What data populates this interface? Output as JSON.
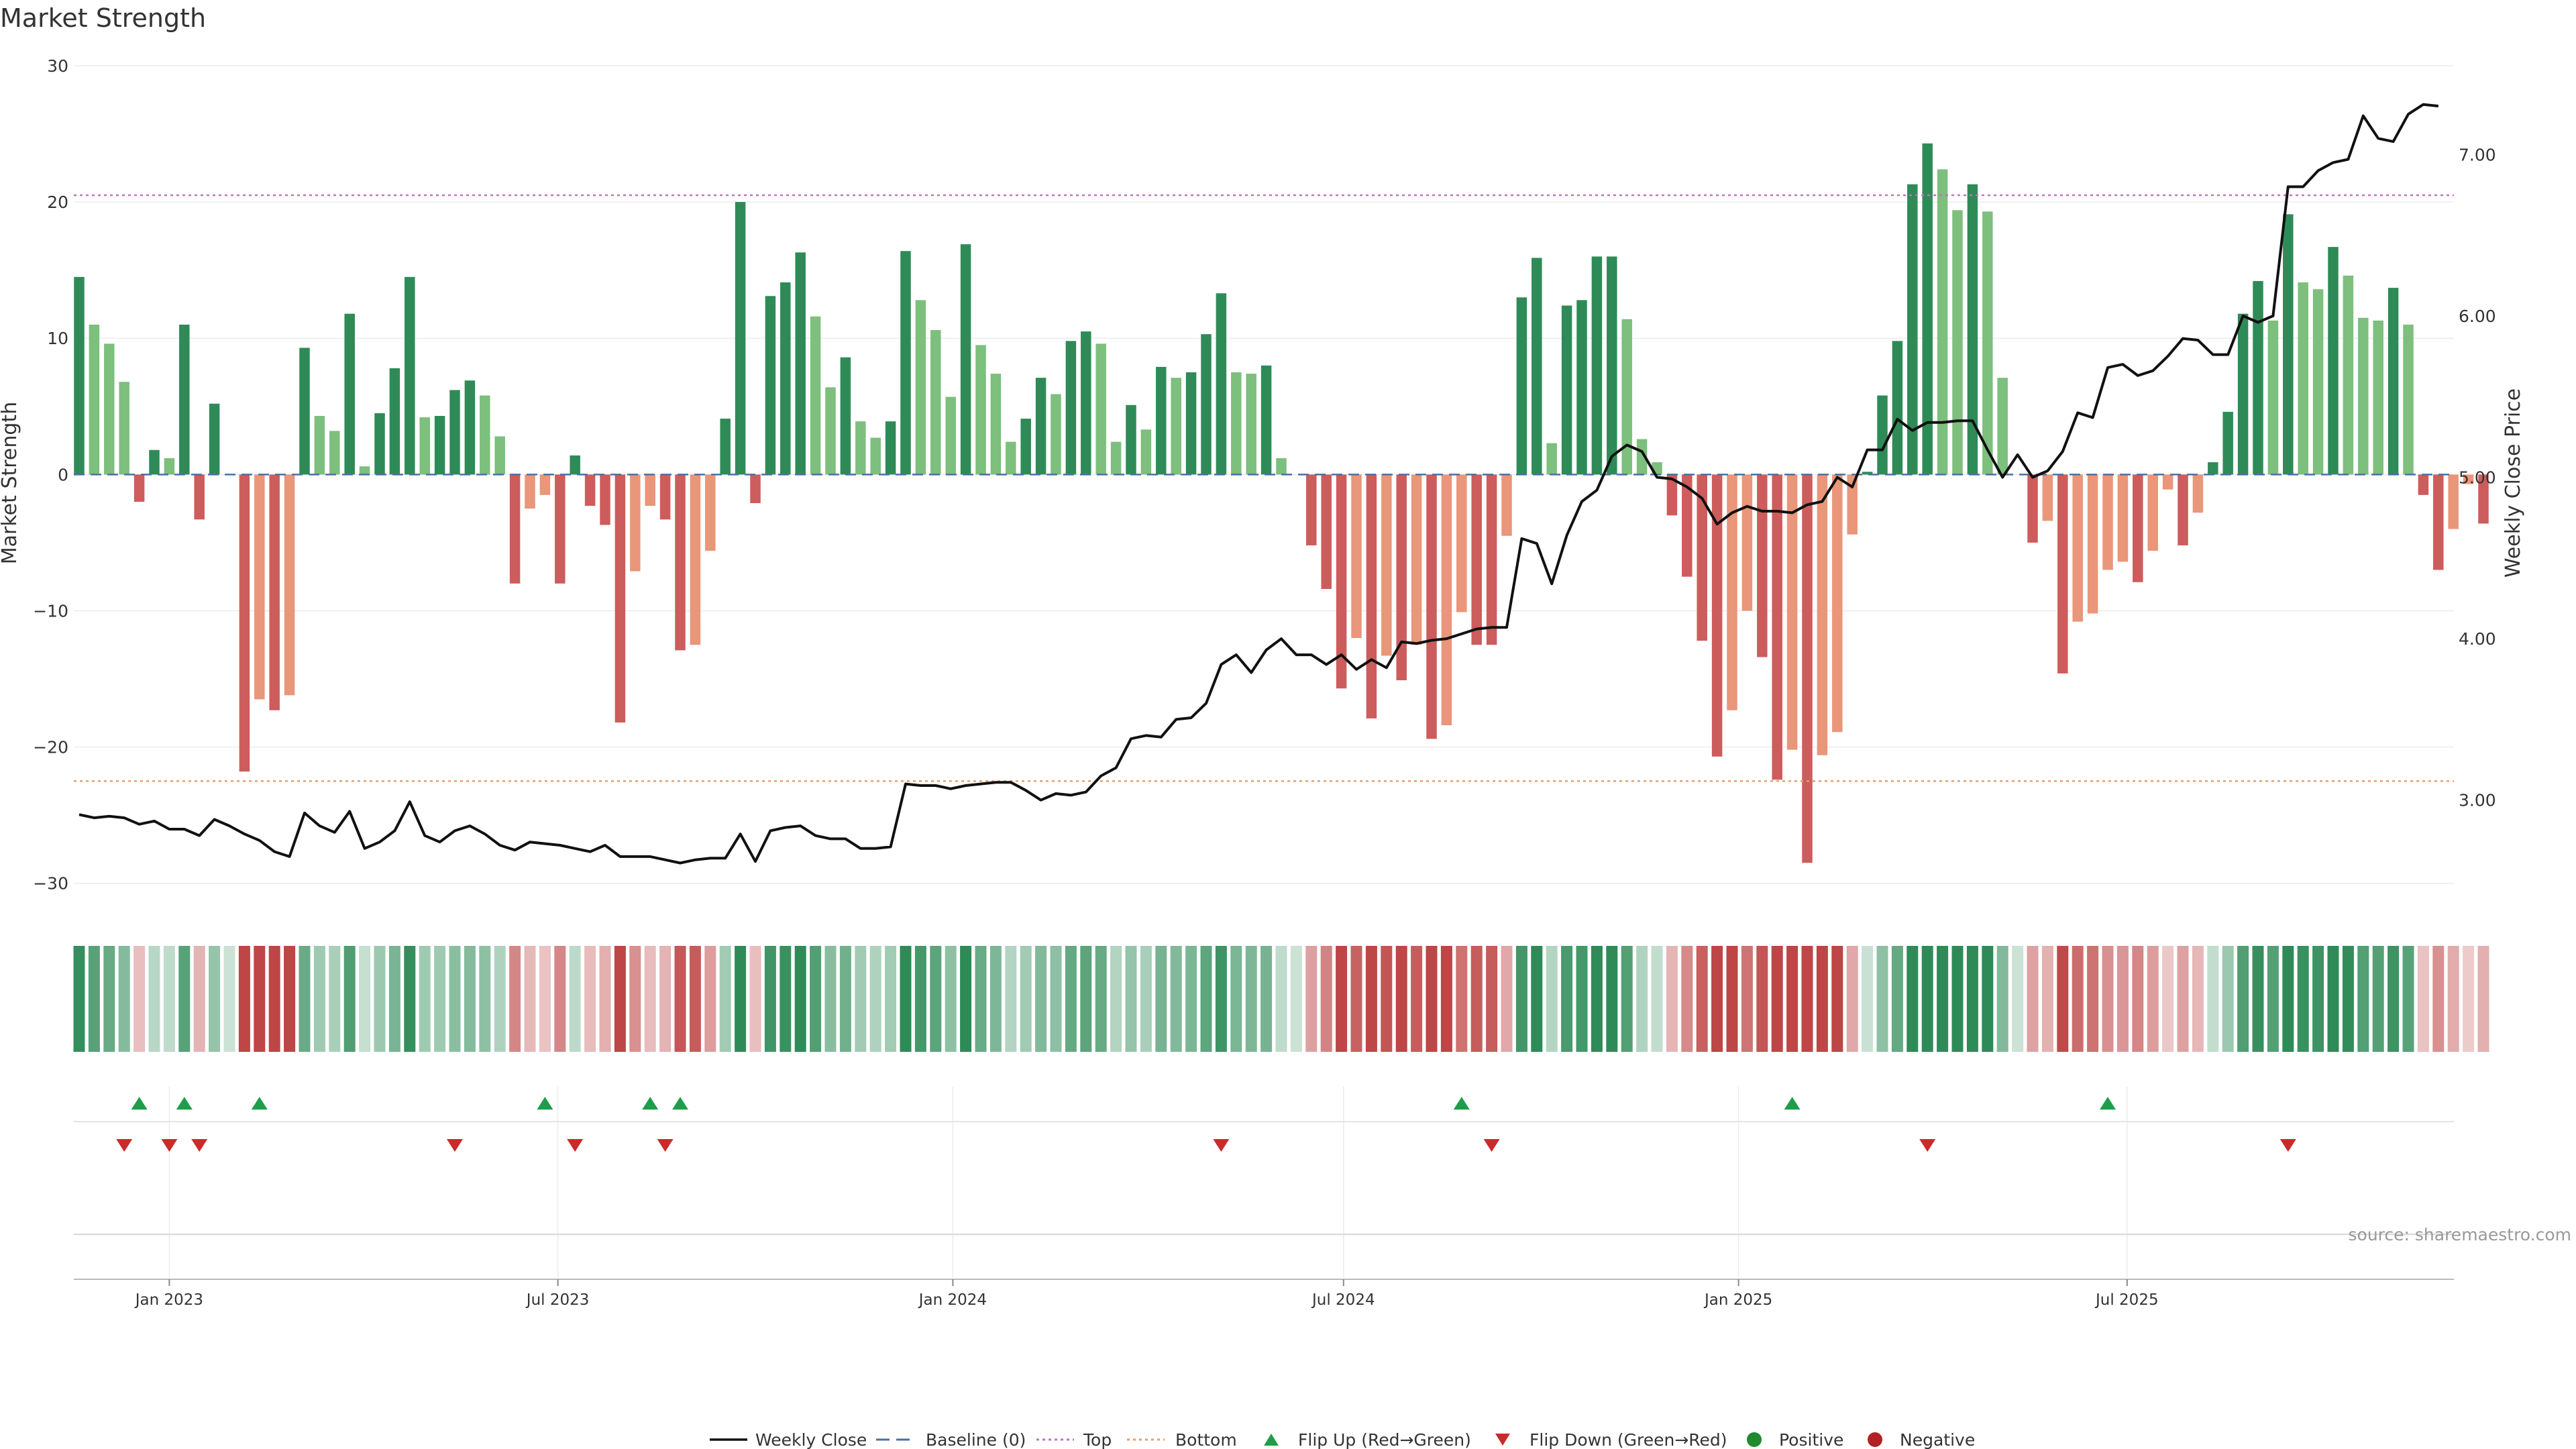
{
  "chart_data": {
    "type": "bar",
    "title": "Market Strength",
    "ylabel_left": "Market Strength",
    "ylabel_right": "Weekly Close Price",
    "ylim_left": [
      -31,
      30
    ],
    "ylim_right": [
      2.4,
      7.55
    ],
    "yticks_left": [
      -30,
      -20,
      -10,
      0,
      10,
      20,
      30
    ],
    "yticks_right": [
      3.0,
      4.0,
      5.0,
      6.0,
      7.0
    ],
    "yticks_right_labels": [
      "3.00",
      "4.00",
      "5.00",
      "6.00",
      "7.00"
    ],
    "x_start": "2022-11-20",
    "x_end": "2025-10-26",
    "xticks": [
      {
        "date": "2023-01-01",
        "label": "Jan 2023"
      },
      {
        "date": "2023-07-01",
        "label": "Jul 2023"
      },
      {
        "date": "2024-01-01",
        "label": "Jan 2024"
      },
      {
        "date": "2024-07-01",
        "label": "Jul 2024"
      },
      {
        "date": "2025-01-01",
        "label": "Jan 2025"
      },
      {
        "date": "2025-07-01",
        "label": "Jul 2025"
      }
    ],
    "top_line": 20.5,
    "bottom_line": -22.5,
    "grid": true,
    "legend_position": "bottom-center",
    "series": [
      {
        "name": "Market Strength",
        "values": [
          14.5,
          11,
          9.6,
          6.8,
          -2,
          1.8,
          1.2,
          11,
          -3.3,
          5.2,
          0,
          -21.8,
          -16.5,
          -17.3,
          -16.2,
          9.3,
          4.3,
          3.2,
          11.8,
          0.6,
          4.5,
          7.8,
          14.5,
          4.2,
          4.3,
          6.2,
          6.9,
          5.8,
          2.8,
          -8,
          -2.5,
          -1.5,
          -8,
          1.4,
          -2.3,
          -3.7,
          -18.2,
          -7.1,
          -2.3,
          -3.3,
          -12.9,
          -12.5,
          -5.6,
          4.1,
          20,
          -2.1,
          13.1,
          14.1,
          16.3,
          11.6,
          6.4,
          8.6,
          3.9,
          2.7,
          3.9,
          16.4,
          12.8,
          10.6,
          5.7,
          16.9,
          9.5,
          7.4,
          2.4,
          4.1,
          7.1,
          5.9,
          9.8,
          10.5,
          9.6,
          2.4,
          5.1,
          3.3,
          7.9,
          7.1,
          7.5,
          10.3,
          13.3,
          7.5,
          7.4,
          8,
          1.2,
          0,
          -5.2,
          -8.4,
          -15.7,
          -12,
          -17.9,
          -13.3,
          -15.1,
          -12.5,
          -19.4,
          -18.4,
          -10.1,
          -12.5,
          -12.5,
          -4.5,
          13,
          15.9,
          2.3,
          12.4,
          12.8,
          16,
          16,
          11.4,
          2.6,
          0.9,
          -3,
          -7.5,
          -12.2,
          -20.7,
          -17.3,
          -10,
          -13.4,
          -22.4,
          -20.2,
          -28.5,
          -20.6,
          -18.9,
          -4.4,
          0.2,
          5.8,
          9.8,
          21.3,
          24.3,
          22.4,
          19.4,
          21.3,
          19.3,
          7.1,
          0,
          -5,
          -3.4,
          -14.6,
          -10.8,
          -10.2,
          -7,
          -6.4,
          -7.9,
          -5.6,
          -1.1,
          -5.2,
          -2.8,
          0.9,
          4.6,
          11.8,
          14.2,
          11.3,
          19.1,
          14.1,
          13.6,
          16.7,
          14.6,
          11.5,
          11.3,
          13.7,
          11,
          -1.5,
          -7,
          -4,
          -0.7,
          -3.6
        ]
      },
      {
        "name": "Weekly Close",
        "values": [
          2.91,
          2.89,
          2.9,
          2.89,
          2.85,
          2.87,
          2.82,
          2.82,
          2.78,
          2.88,
          2.84,
          2.79,
          2.75,
          2.68,
          2.65,
          2.92,
          2.84,
          2.8,
          2.93,
          2.7,
          2.74,
          2.81,
          2.99,
          2.78,
          2.74,
          2.81,
          2.84,
          2.79,
          2.72,
          2.69,
          2.74,
          2.73,
          2.72,
          2.7,
          2.68,
          2.72,
          2.65,
          2.65,
          2.65,
          2.63,
          2.61,
          2.63,
          2.64,
          2.64,
          2.79,
          2.62,
          2.81,
          2.83,
          2.84,
          2.78,
          2.76,
          2.76,
          2.7,
          2.7,
          2.71,
          3.1,
          3.09,
          3.09,
          3.07,
          3.09,
          3.1,
          3.11,
          3.11,
          3.06,
          3.0,
          3.04,
          3.03,
          3.05,
          3.15,
          3.2,
          3.38,
          3.4,
          3.39,
          3.5,
          3.51,
          3.6,
          3.84,
          3.9,
          3.79,
          3.93,
          4.0,
          3.9,
          3.9,
          3.84,
          3.9,
          3.81,
          3.87,
          3.82,
          3.98,
          3.97,
          3.99,
          4.0,
          4.03,
          4.06,
          4.07,
          4.07,
          4.62,
          4.59,
          4.34,
          4.64,
          4.85,
          4.92,
          5.13,
          5.2,
          5.16,
          5.0,
          4.99,
          4.94,
          4.87,
          4.71,
          4.78,
          4.82,
          4.79,
          4.79,
          4.78,
          4.83,
          4.85,
          5.0,
          4.94,
          5.17,
          5.17,
          5.36,
          5.29,
          5.34,
          5.34,
          5.35,
          5.35,
          5.17,
          5.0,
          5.14,
          5.0,
          5.04,
          5.16,
          5.4,
          5.37,
          5.68,
          5.7,
          5.63,
          5.66,
          5.75,
          5.86,
          5.85,
          5.76,
          5.76,
          6.0,
          5.96,
          6.0,
          6.8,
          6.8,
          6.9,
          6.95,
          6.97,
          7.24,
          7.1,
          7.08,
          7.25,
          7.31,
          7.3
        ]
      },
      {
        "name": "Baseline (0)",
        "value": 0
      }
    ],
    "flip_up_dates": [
      "2022-12-18",
      "2023-01-08",
      "2023-02-12",
      "2023-06-25",
      "2023-08-13",
      "2023-08-27",
      "2024-08-25",
      "2025-01-26",
      "2025-06-22"
    ],
    "flip_down_dates": [
      "2022-12-11",
      "2023-01-01",
      "2023-01-15",
      "2023-05-14",
      "2023-07-09",
      "2023-08-20",
      "2024-05-05",
      "2024-09-08",
      "2025-03-30",
      "2025-09-14"
    ],
    "legend": [
      "Weekly Close",
      "Baseline (0)",
      "Top",
      "Bottom",
      "Flip Up (Red→Green)",
      "Flip Down (Green→Red)",
      "Positive",
      "Negative"
    ],
    "source": "source: sharemaestro.com"
  },
  "colors": {
    "strong_green": "#2e8b57",
    "light_green": "#7dbf7d",
    "strong_red": "#cd5c5c",
    "light_red": "#e9967a",
    "line": "#111111",
    "baseline": "#4a6fa5",
    "top": "#c071c0",
    "bottom": "#e0a070",
    "flip_up": "#1e9e4a",
    "flip_down": "#cc2a2a",
    "positive": "#1f8a2e",
    "negative": "#b22222"
  }
}
